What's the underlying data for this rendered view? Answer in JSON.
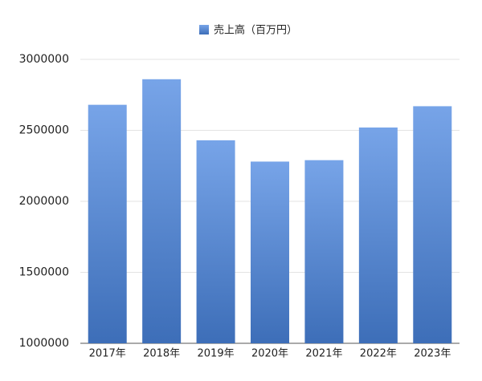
{
  "chart_data": {
    "type": "bar",
    "legend": "売上高（百万円）",
    "categories": [
      "2017年",
      "2018年",
      "2019年",
      "2020年",
      "2021年",
      "2022年",
      "2023年"
    ],
    "series": [
      {
        "name": "売上高（百万円）",
        "color": "#4a86e0",
        "values": [
          2680000,
          2860000,
          2430000,
          2280000,
          2290000,
          2520000,
          2670000
        ]
      }
    ],
    "ylim": [
      1000000,
      3000000
    ],
    "yticks": [
      1000000,
      1500000,
      2000000,
      2500000,
      3000000
    ],
    "grid": true,
    "legend_position": "top"
  }
}
